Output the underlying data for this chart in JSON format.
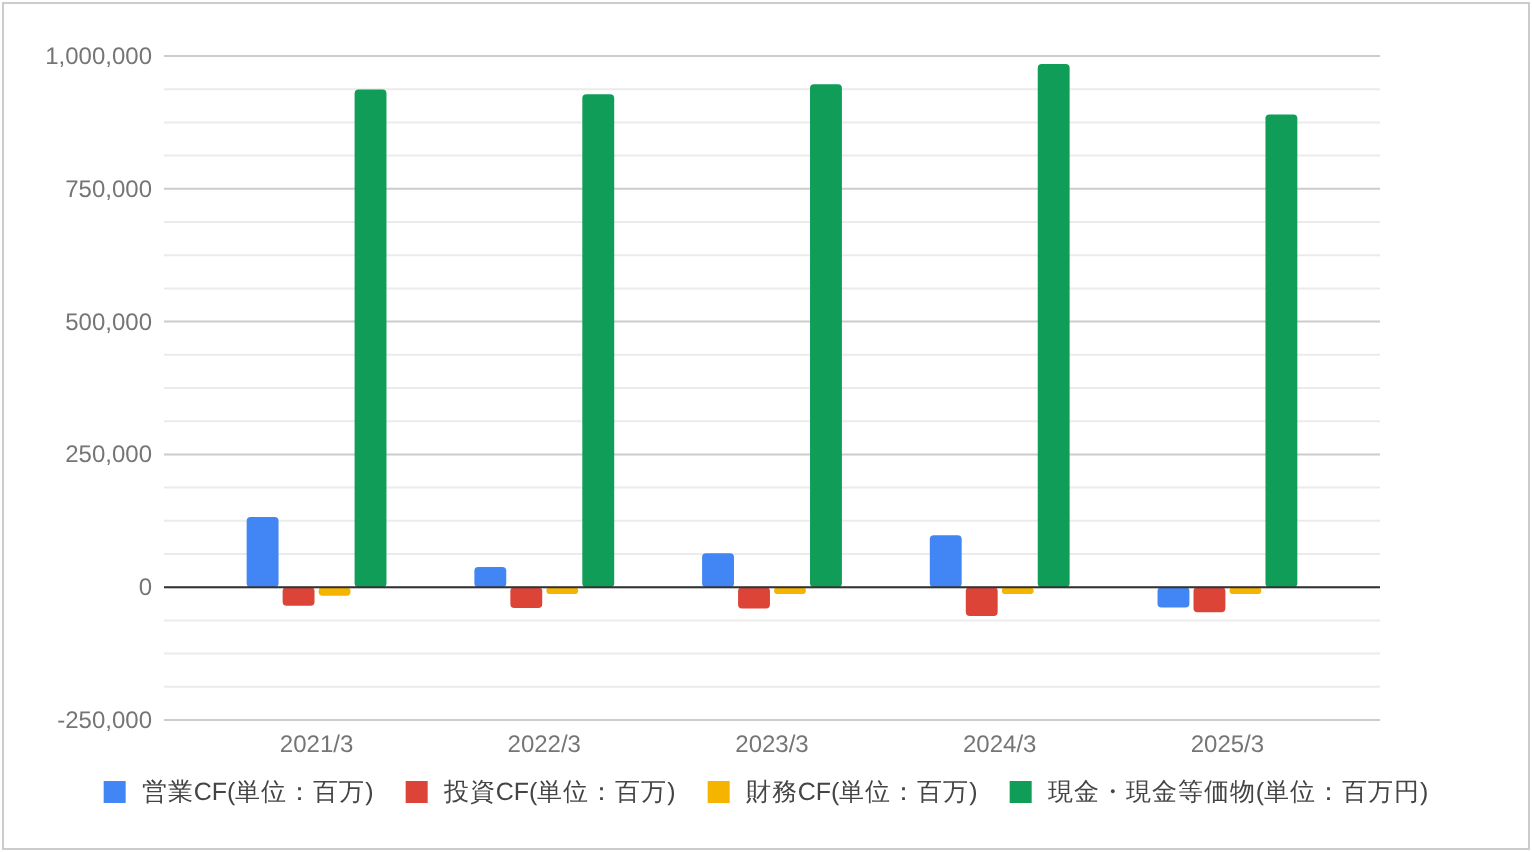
{
  "chart_data": {
    "type": "bar",
    "categories": [
      "2021/3",
      "2022/3",
      "2023/3",
      "2024/3",
      "2025/3"
    ],
    "series": [
      {
        "name": "営業CF(単位：百万)",
        "color": "#4285f4",
        "values": [
          132000,
          38000,
          64000,
          98000,
          -38000
        ]
      },
      {
        "name": "投資CF(単位：百万)",
        "color": "#db4437",
        "values": [
          -35000,
          -39000,
          -40000,
          -54000,
          -47000
        ]
      },
      {
        "name": "財務CF(単位：百万)",
        "color": "#f4b400",
        "values": [
          -16000,
          -13000,
          -13000,
          -13000,
          -13000
        ]
      },
      {
        "name": "現金・現金等価物(単位：百万円)",
        "color": "#0f9d58",
        "values": [
          937000,
          928000,
          947000,
          985000,
          890000
        ]
      }
    ],
    "ylim": [
      -250000,
      1000000
    ],
    "yticks": [
      {
        "value": -250000,
        "label": "-250,000"
      },
      {
        "value": -187500,
        "label": null
      },
      {
        "value": -125000,
        "label": null
      },
      {
        "value": -62500,
        "label": null
      },
      0,
      {
        "value": 62500,
        "label": null
      },
      {
        "value": 125000,
        "label": null
      },
      {
        "value": 187500,
        "label": null
      },
      {
        "value": 250000,
        "label": "250,000"
      },
      {
        "value": 312500,
        "label": null
      },
      {
        "value": 375000,
        "label": null
      },
      {
        "value": 437500,
        "label": null
      },
      {
        "value": 500000,
        "label": "500,000"
      },
      {
        "value": 562500,
        "label": null
      },
      {
        "value": 625000,
        "label": null
      },
      {
        "value": 687500,
        "label": null
      },
      {
        "value": 750000,
        "label": "750,000"
      },
      {
        "value": 812500,
        "label": null
      },
      {
        "value": 875000,
        "label": null
      },
      {
        "value": 937500,
        "label": null
      },
      {
        "value": 1000000,
        "label": "1,000,000"
      }
    ],
    "grid": "y",
    "legend": "bottom"
  }
}
